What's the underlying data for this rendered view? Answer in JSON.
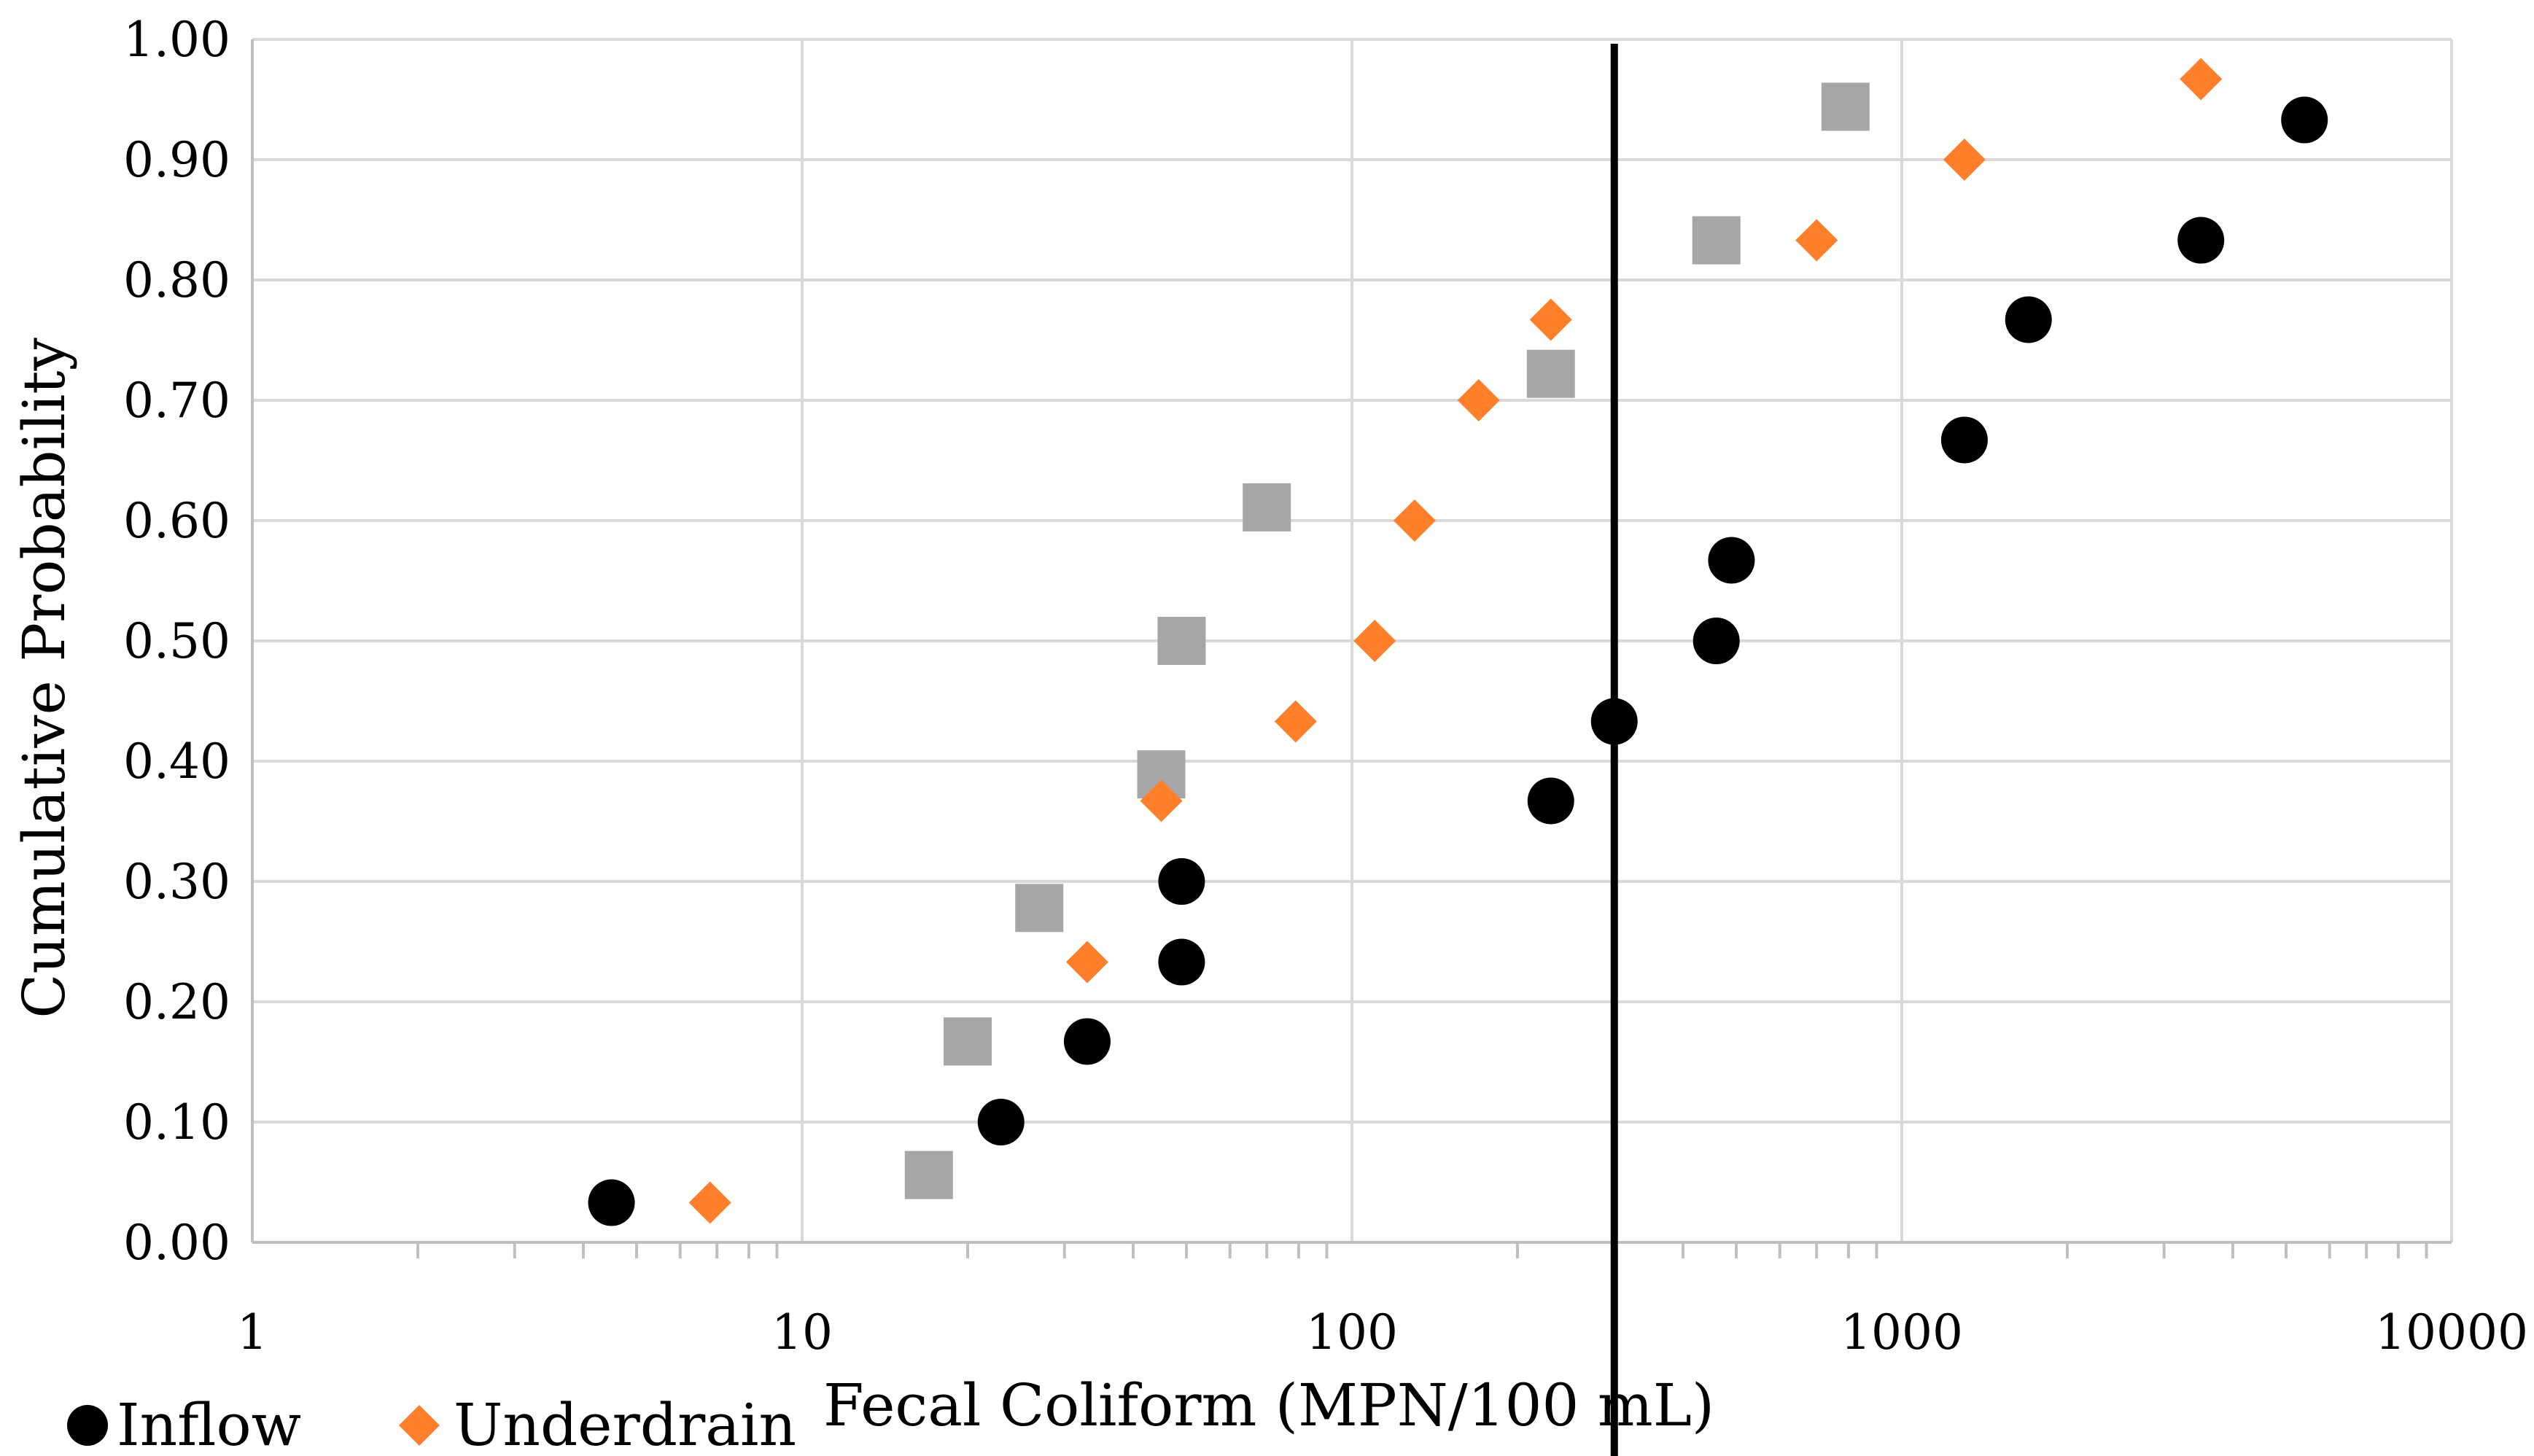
{
  "chart_data": {
    "type": "scatter",
    "title": "",
    "xlabel": "Fecal Coliform (MPN/100 mL)",
    "ylabel": "Cumulative Probability",
    "xscale": "log",
    "xlim": [
      1,
      10000
    ],
    "ylim": [
      0,
      1
    ],
    "x_ticks": [
      "1",
      "10",
      "100",
      "1000",
      "10000"
    ],
    "y_ticks": [
      "0.00",
      "0.10",
      "0.20",
      "0.30",
      "0.40",
      "0.50",
      "0.60",
      "0.70",
      "0.80",
      "0.90",
      "1.00"
    ],
    "grid": true,
    "reference_line_x": 300,
    "legend_position": "bottom-left",
    "series": [
      {
        "name": "Inflow",
        "marker": "circle",
        "color": "#000000",
        "show_in_legend": true,
        "points": [
          {
            "x": 4.5,
            "y": 0.033
          },
          {
            "x": 23,
            "y": 0.1
          },
          {
            "x": 33,
            "y": 0.167
          },
          {
            "x": 49,
            "y": 0.233
          },
          {
            "x": 49,
            "y": 0.3
          },
          {
            "x": 230,
            "y": 0.367
          },
          {
            "x": 300,
            "y": 0.433
          },
          {
            "x": 460,
            "y": 0.5
          },
          {
            "x": 490,
            "y": 0.567
          },
          {
            "x": 1300,
            "y": 0.667
          },
          {
            "x": 1700,
            "y": 0.767
          },
          {
            "x": 3500,
            "y": 0.833
          },
          {
            "x": 5400,
            "y": 0.933
          }
        ]
      },
      {
        "name": "Underdrain",
        "marker": "diamond",
        "color": "#ff7f2a",
        "show_in_legend": true,
        "points": [
          {
            "x": 6.8,
            "y": 0.033
          },
          {
            "x": 23,
            "y": 0.1
          },
          {
            "x": 33,
            "y": 0.233
          },
          {
            "x": 45,
            "y": 0.367
          },
          {
            "x": 79,
            "y": 0.433
          },
          {
            "x": 110,
            "y": 0.5
          },
          {
            "x": 130,
            "y": 0.6
          },
          {
            "x": 170,
            "y": 0.7
          },
          {
            "x": 230,
            "y": 0.767
          },
          {
            "x": 700,
            "y": 0.833
          },
          {
            "x": 1300,
            "y": 0.9
          },
          {
            "x": 3500,
            "y": 0.967
          }
        ]
      },
      {
        "name": "",
        "marker": "square",
        "color": "#a6a6a6",
        "show_in_legend": false,
        "points": [
          {
            "x": 17,
            "y": 0.056
          },
          {
            "x": 20,
            "y": 0.167
          },
          {
            "x": 27,
            "y": 0.278
          },
          {
            "x": 45,
            "y": 0.389
          },
          {
            "x": 49,
            "y": 0.5
          },
          {
            "x": 70,
            "y": 0.611
          },
          {
            "x": 230,
            "y": 0.722
          },
          {
            "x": 460,
            "y": 0.833
          },
          {
            "x": 790,
            "y": 0.944
          }
        ]
      }
    ]
  }
}
